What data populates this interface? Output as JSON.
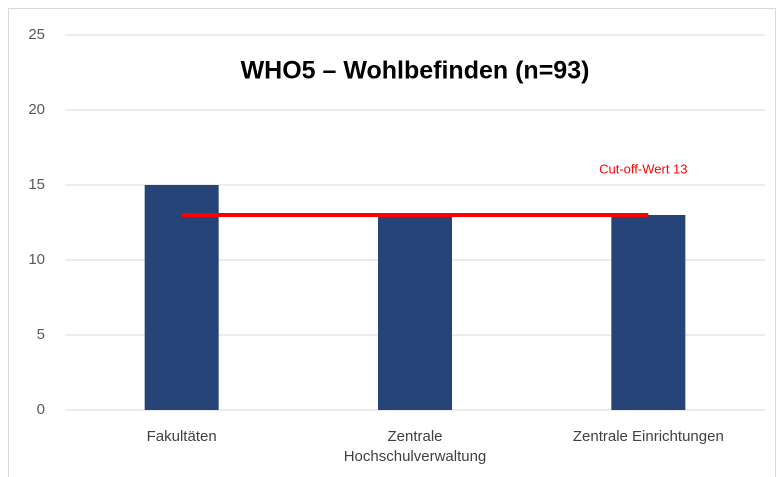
{
  "chart_data": {
    "type": "bar",
    "title": "WHO5 – Wohlbefinden (n=93)",
    "categories": [
      "Fakultäten",
      "Zentrale Hochschulverwaltung",
      "Zentrale Einrichtungen"
    ],
    "values": [
      15,
      13,
      13
    ],
    "color": "#264478",
    "ylim": [
      0,
      25
    ],
    "yticks": [
      0,
      5,
      10,
      15,
      20,
      25
    ],
    "grid": true,
    "reference_line": {
      "value": 13,
      "label": "Cut-off-Wert 13",
      "color": "#ff0000"
    }
  }
}
